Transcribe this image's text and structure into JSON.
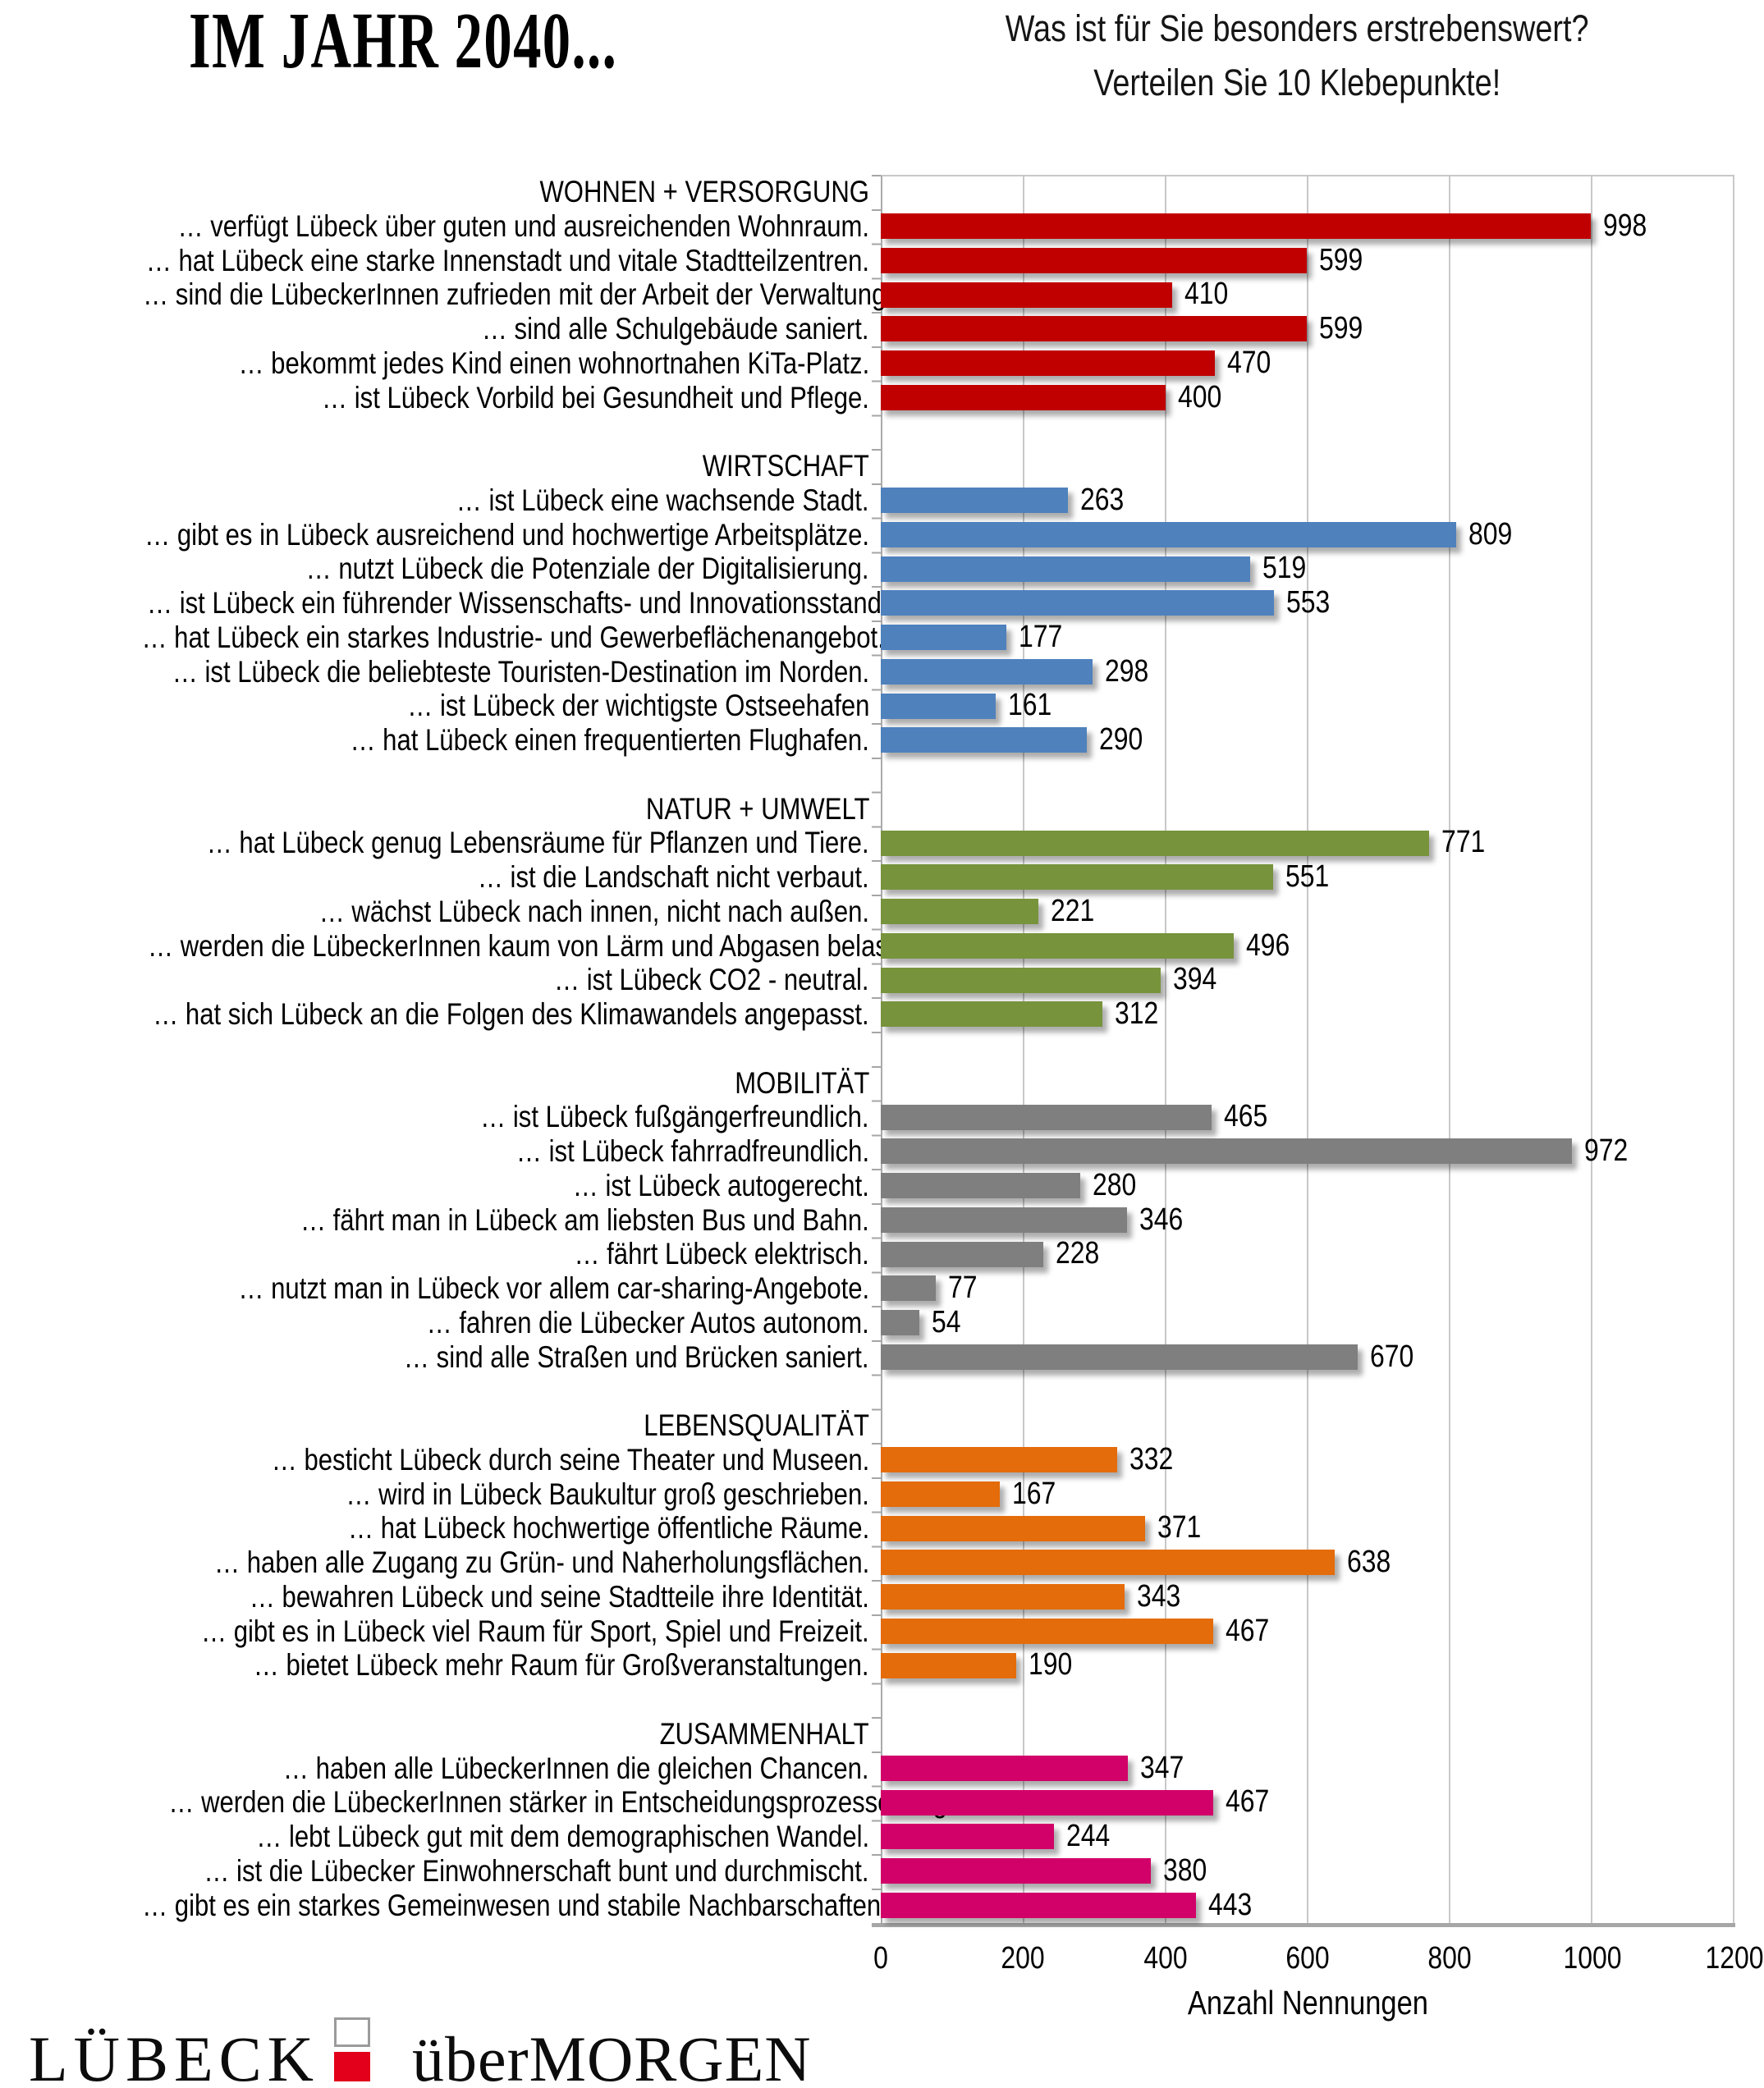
{
  "header": {
    "title": "IM JAHR 2040...",
    "subtitle_lines": [
      "Was ist für Sie besonders erstrebenswert?",
      "Verteilen Sie 10 Klebepunkte!"
    ]
  },
  "chart_data": {
    "type": "bar",
    "orientation": "horizontal",
    "xlabel": "Anzahl Nennungen",
    "xlim": [
      0,
      1200
    ],
    "xticks": [
      0,
      200,
      400,
      600,
      800,
      1000,
      1200
    ],
    "grid": true,
    "value_labels": true,
    "sections": [
      {
        "label": "WOHNEN + VERSORGUNG",
        "color": "#C00000",
        "items": [
          {
            "label": "… verfügt Lübeck über guten und ausreichenden Wohnraum.",
            "value": 998
          },
          {
            "label": "… hat Lübeck eine starke Innenstadt und vitale Stadtteilzentren.",
            "value": 599
          },
          {
            "label": "… sind die LübeckerInnen zufrieden mit der Arbeit der Verwaltung.",
            "value": 410
          },
          {
            "label": "… sind alle Schulgebäude saniert.",
            "value": 599
          },
          {
            "label": "… bekommt jedes Kind einen wohnortnahen KiTa-Platz.",
            "value": 470
          },
          {
            "label": "… ist Lübeck Vorbild bei Gesundheit und Pflege.",
            "value": 400
          }
        ]
      },
      {
        "label": "WIRTSCHAFT",
        "color": "#4F81BD",
        "items": [
          {
            "label": "… ist Lübeck eine wachsende Stadt.",
            "value": 263
          },
          {
            "label": "… gibt es in Lübeck ausreichend und hochwertige Arbeitsplätze.",
            "value": 809
          },
          {
            "label": "… nutzt Lübeck die Potenziale der Digitalisierung.",
            "value": 519
          },
          {
            "label": "… ist Lübeck ein führender Wissenschafts- und Innovationsstandort.",
            "value": 553
          },
          {
            "label": "… hat Lübeck ein starkes Industrie- und Gewerbeflächenangebot.",
            "value": 177
          },
          {
            "label": "… ist Lübeck die beliebteste Touristen-Destination im Norden.",
            "value": 298
          },
          {
            "label": "… ist Lübeck der wichtigste Ostseehafen",
            "value": 161
          },
          {
            "label": "… hat Lübeck einen frequentierten Flughafen.",
            "value": 290
          }
        ]
      },
      {
        "label": "NATUR + UMWELT",
        "color": "#77933C",
        "items": [
          {
            "label": "… hat Lübeck genug Lebensräume für Pflanzen und Tiere.",
            "value": 771
          },
          {
            "label": "… ist die Landschaft nicht verbaut.",
            "value": 551
          },
          {
            "label": "… wächst Lübeck nach innen, nicht nach außen.",
            "value": 221
          },
          {
            "label": "… werden die LübeckerInnen kaum von Lärm und Abgasen belastet.",
            "value": 496
          },
          {
            "label": "… ist Lübeck CO2 - neutral.",
            "value": 394
          },
          {
            "label": "… hat sich Lübeck an die Folgen des Klimawandels angepasst.",
            "value": 312
          }
        ]
      },
      {
        "label": "MOBILITÄT",
        "color": "#7F7F7F",
        "items": [
          {
            "label": "… ist Lübeck fußgängerfreundlich.",
            "value": 465
          },
          {
            "label": "… ist Lübeck fahrradfreundlich.",
            "value": 972
          },
          {
            "label": "… ist Lübeck autogerecht.",
            "value": 280
          },
          {
            "label": "… fährt man in Lübeck am liebsten Bus und Bahn.",
            "value": 346
          },
          {
            "label": "… fährt Lübeck elektrisch.",
            "value": 228
          },
          {
            "label": "… nutzt man in Lübeck vor allem car-sharing-Angebote.",
            "value": 77
          },
          {
            "label": "… fahren die Lübecker Autos autonom.",
            "value": 54
          },
          {
            "label": "… sind alle Straßen und Brücken saniert.",
            "value": 670
          }
        ]
      },
      {
        "label": "LEBENSQUALITÄT",
        "color": "#E46C0A",
        "items": [
          {
            "label": "… besticht Lübeck durch seine Theater und Museen.",
            "value": 332
          },
          {
            "label": "… wird in Lübeck Baukultur groß geschrieben.",
            "value": 167
          },
          {
            "label": "… hat Lübeck hochwertige öffentliche Räume.",
            "value": 371
          },
          {
            "label": "… haben alle Zugang zu Grün- und Naherholungsflächen.",
            "value": 638
          },
          {
            "label": "… bewahren Lübeck und seine Stadtteile ihre Identität.",
            "value": 343
          },
          {
            "label": "… gibt es in Lübeck viel Raum für Sport, Spiel und Freizeit.",
            "value": 467
          },
          {
            "label": "… bietet Lübeck mehr Raum für Großveranstaltungen.",
            "value": 190
          }
        ]
      },
      {
        "label": "ZUSAMMENHALT",
        "color": "#D20069",
        "items": [
          {
            "label": "… haben alle LübeckerInnen die gleichen Chancen.",
            "value": 347
          },
          {
            "label": "… werden die LübeckerInnen stärker in Entscheidungsprozesse eingebunden.",
            "value": 467
          },
          {
            "label": "… lebt Lübeck gut mit dem demographischen Wandel.",
            "value": 244
          },
          {
            "label": "… ist die Lübecker Einwohnerschaft bunt und durchmischt.",
            "value": 380
          },
          {
            "label": "… gibt es ein starkes Gemeinwesen und stabile Nachbarschaften.",
            "value": 443
          }
        ]
      }
    ]
  },
  "footer": {
    "logo_left": "LÜBECK",
    "logo_right": "überMORGEN",
    "logo_square_color": "#E2001A"
  }
}
